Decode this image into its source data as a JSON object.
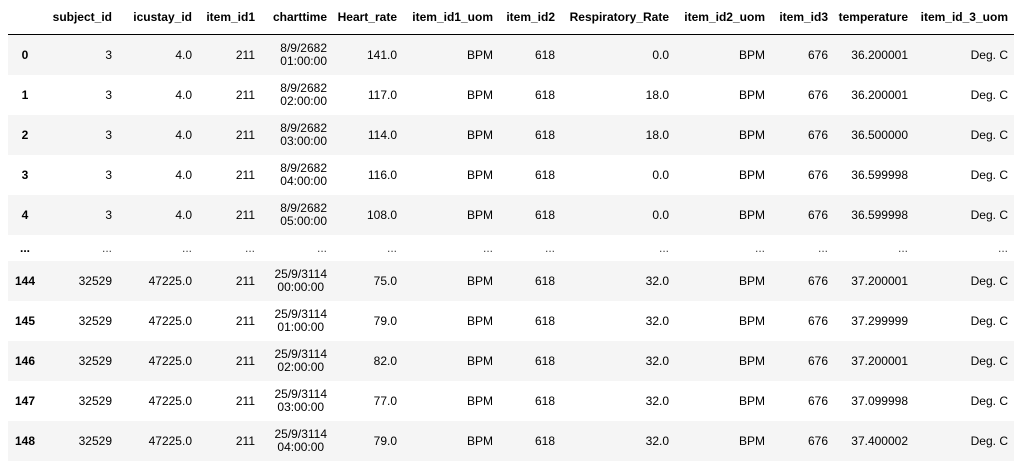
{
  "columns": [
    "",
    "subject_id",
    "icustay_id",
    "item_id1",
    "charttime",
    "Heart_rate",
    "item_id1_uom",
    "item_id2",
    "Respiratory_Rate",
    "item_id2_uom",
    "item_id3",
    "temperature",
    "item_id_3_uom"
  ],
  "rows": [
    {
      "index": "0",
      "subject_id": "3",
      "icustay_id": "4.0",
      "item_id1": "211",
      "charttime_date": "8/9/2682",
      "charttime_time": "01:00:00",
      "heart_rate": "141.0",
      "item_id1_uom": "BPM",
      "item_id2": "618",
      "respiratory_rate": "0.0",
      "item_id2_uom": "BPM",
      "item_id3": "676",
      "temperature": "36.200001",
      "item_id_3_uom": "Deg. C"
    },
    {
      "index": "1",
      "subject_id": "3",
      "icustay_id": "4.0",
      "item_id1": "211",
      "charttime_date": "8/9/2682",
      "charttime_time": "02:00:00",
      "heart_rate": "117.0",
      "item_id1_uom": "BPM",
      "item_id2": "618",
      "respiratory_rate": "18.0",
      "item_id2_uom": "BPM",
      "item_id3": "676",
      "temperature": "36.200001",
      "item_id_3_uom": "Deg. C"
    },
    {
      "index": "2",
      "subject_id": "3",
      "icustay_id": "4.0",
      "item_id1": "211",
      "charttime_date": "8/9/2682",
      "charttime_time": "03:00:00",
      "heart_rate": "114.0",
      "item_id1_uom": "BPM",
      "item_id2": "618",
      "respiratory_rate": "18.0",
      "item_id2_uom": "BPM",
      "item_id3": "676",
      "temperature": "36.500000",
      "item_id_3_uom": "Deg. C"
    },
    {
      "index": "3",
      "subject_id": "3",
      "icustay_id": "4.0",
      "item_id1": "211",
      "charttime_date": "8/9/2682",
      "charttime_time": "04:00:00",
      "heart_rate": "116.0",
      "item_id1_uom": "BPM",
      "item_id2": "618",
      "respiratory_rate": "0.0",
      "item_id2_uom": "BPM",
      "item_id3": "676",
      "temperature": "36.599998",
      "item_id_3_uom": "Deg. C"
    },
    {
      "index": "4",
      "subject_id": "3",
      "icustay_id": "4.0",
      "item_id1": "211",
      "charttime_date": "8/9/2682",
      "charttime_time": "05:00:00",
      "heart_rate": "108.0",
      "item_id1_uom": "BPM",
      "item_id2": "618",
      "respiratory_rate": "0.0",
      "item_id2_uom": "BPM",
      "item_id3": "676",
      "temperature": "36.599998",
      "item_id_3_uom": "Deg. C"
    },
    {
      "ellipsis": true,
      "index": "...",
      "cell": "..."
    },
    {
      "index": "144",
      "subject_id": "32529",
      "icustay_id": "47225.0",
      "item_id1": "211",
      "charttime_date": "25/9/3114",
      "charttime_time": "00:00:00",
      "heart_rate": "75.0",
      "item_id1_uom": "BPM",
      "item_id2": "618",
      "respiratory_rate": "32.0",
      "item_id2_uom": "BPM",
      "item_id3": "676",
      "temperature": "37.200001",
      "item_id_3_uom": "Deg. C"
    },
    {
      "index": "145",
      "subject_id": "32529",
      "icustay_id": "47225.0",
      "item_id1": "211",
      "charttime_date": "25/9/3114",
      "charttime_time": "01:00:00",
      "heart_rate": "79.0",
      "item_id1_uom": "BPM",
      "item_id2": "618",
      "respiratory_rate": "32.0",
      "item_id2_uom": "BPM",
      "item_id3": "676",
      "temperature": "37.299999",
      "item_id_3_uom": "Deg. C"
    },
    {
      "index": "146",
      "subject_id": "32529",
      "icustay_id": "47225.0",
      "item_id1": "211",
      "charttime_date": "25/9/3114",
      "charttime_time": "02:00:00",
      "heart_rate": "82.0",
      "item_id1_uom": "BPM",
      "item_id2": "618",
      "respiratory_rate": "32.0",
      "item_id2_uom": "BPM",
      "item_id3": "676",
      "temperature": "37.200001",
      "item_id_3_uom": "Deg. C"
    },
    {
      "index": "147",
      "subject_id": "32529",
      "icustay_id": "47225.0",
      "item_id1": "211",
      "charttime_date": "25/9/3114",
      "charttime_time": "03:00:00",
      "heart_rate": "77.0",
      "item_id1_uom": "BPM",
      "item_id2": "618",
      "respiratory_rate": "32.0",
      "item_id2_uom": "BPM",
      "item_id3": "676",
      "temperature": "37.099998",
      "item_id_3_uom": "Deg. C"
    },
    {
      "index": "148",
      "subject_id": "32529",
      "icustay_id": "47225.0",
      "item_id1": "211",
      "charttime_date": "25/9/3114",
      "charttime_time": "04:00:00",
      "heart_rate": "79.0",
      "item_id1_uom": "BPM",
      "item_id2": "618",
      "respiratory_rate": "32.0",
      "item_id2_uom": "BPM",
      "item_id3": "676",
      "temperature": "37.400002",
      "item_id_3_uom": "Deg. C"
    }
  ]
}
